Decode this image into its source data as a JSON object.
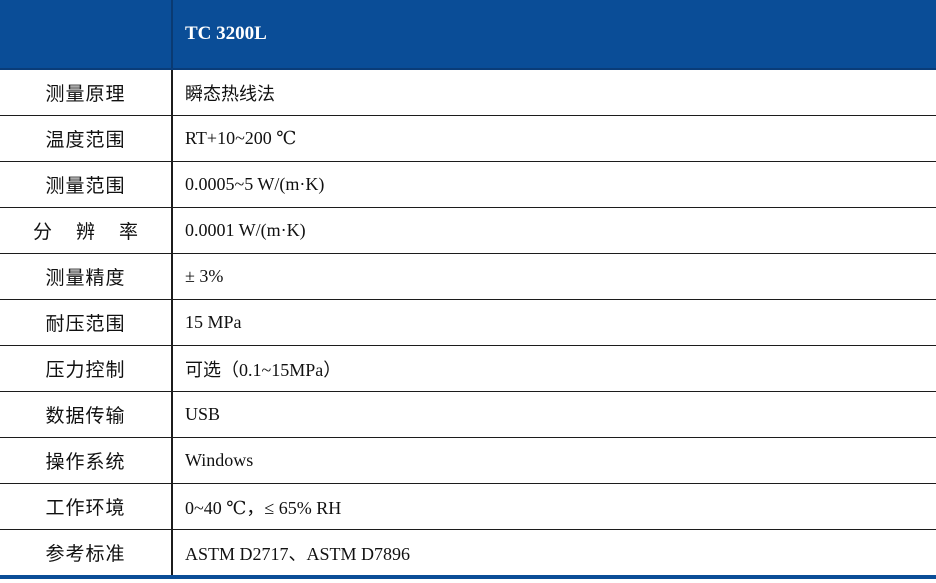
{
  "header": {
    "empty_label": "",
    "model": "TC 3200L"
  },
  "rows": [
    {
      "label": "测量原理",
      "value": "瞬态热线法"
    },
    {
      "label": "温度范围",
      "value": "RT+10~200 ℃"
    },
    {
      "label": "测量范围",
      "value": "0.0005~5 W/(m·K)"
    },
    {
      "label": "分 辨 率",
      "value": "0.0001 W/(m·K)"
    },
    {
      "label": "测量精度",
      "value": "± 3%"
    },
    {
      "label": "耐压范围",
      "value": "15 MPa"
    },
    {
      "label": "压力控制",
      "value": "可选（0.1~15MPa）"
    },
    {
      "label": "数据传输",
      "value": "USB"
    },
    {
      "label": "操作系统",
      "value": "Windows"
    },
    {
      "label": "工作环境",
      "value": "0~40 ℃，≤ 65% RH"
    },
    {
      "label": "参考标准",
      "value": "ASTM D2717、ASTM D7896"
    }
  ],
  "colors": {
    "header_bg": "#0a4d97",
    "header_text": "#ffffff",
    "border": "#1c1c1c"
  }
}
